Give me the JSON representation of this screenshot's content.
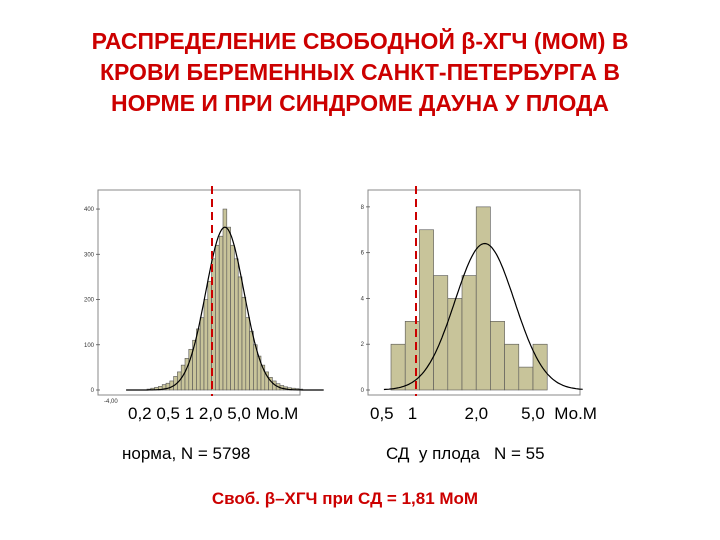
{
  "title": {
    "line1": "РАСПРЕДЕЛЕНИЕ   СВОБОДНОЙ  β-ХГЧ (МОМ) В",
    "line2": "КРОВИ БЕРЕМЕННЫХ САНКТ-ПЕТЕРБУРГА В",
    "line3": "НОРМЕ И ПРИ СИНДРОМЕ ДАУНА У ПЛОДА"
  },
  "colors": {
    "bar_fill": "#c8c49a",
    "bar_stroke": "#555555",
    "marker": "#cc0000",
    "curve": "#000000"
  },
  "chart_data": [
    {
      "type": "bar",
      "y_ticks": [
        "0",
        "100",
        "200",
        "300",
        "400"
      ],
      "x_tick_first": "-4,00",
      "ylim": [
        0,
        420
      ],
      "x": [
        -20,
        -19,
        -18,
        -17,
        -16,
        -15,
        -14,
        -13,
        -12,
        -11,
        -10,
        -9,
        -8,
        -7,
        -6,
        -5,
        -4,
        -3,
        -2,
        -1,
        0,
        1,
        2,
        3,
        4,
        5,
        6,
        7,
        8,
        9,
        10,
        11,
        12,
        13,
        14,
        15,
        16,
        17,
        18,
        19,
        20
      ],
      "values": [
        2,
        4,
        6,
        8,
        12,
        15,
        20,
        30,
        40,
        55,
        70,
        90,
        110,
        135,
        160,
        200,
        240,
        290,
        320,
        340,
        400,
        360,
        320,
        290,
        250,
        205,
        160,
        130,
        100,
        75,
        55,
        40,
        28,
        20,
        14,
        10,
        7,
        5,
        4,
        3,
        2
      ],
      "curve": {
        "peak": 360,
        "sigma": 5
      },
      "xlabel": "0,2  0,5  1  2,0   5,0  Мо.М",
      "note": "норма,  N = 5798"
    },
    {
      "type": "bar",
      "y_ticks": [
        "0",
        "2",
        "4",
        "6",
        "8"
      ],
      "ylim": [
        0,
        8.3
      ],
      "x": [
        1,
        2,
        3,
        4,
        5,
        6,
        7,
        8,
        9,
        10,
        11
      ],
      "values": [
        2,
        3,
        7,
        5,
        4,
        5,
        8,
        3,
        2,
        1,
        2
      ],
      "curve": {
        "peak": 6.4,
        "mean": 6.1,
        "sigma": 2.1
      },
      "xlabel": "0,5   1          2,0       5,0  Мо.М",
      "note": "СД  у плода   N = 55"
    }
  ],
  "footer": "Своб. β–ХГЧ при СД = 1,81 МоМ"
}
